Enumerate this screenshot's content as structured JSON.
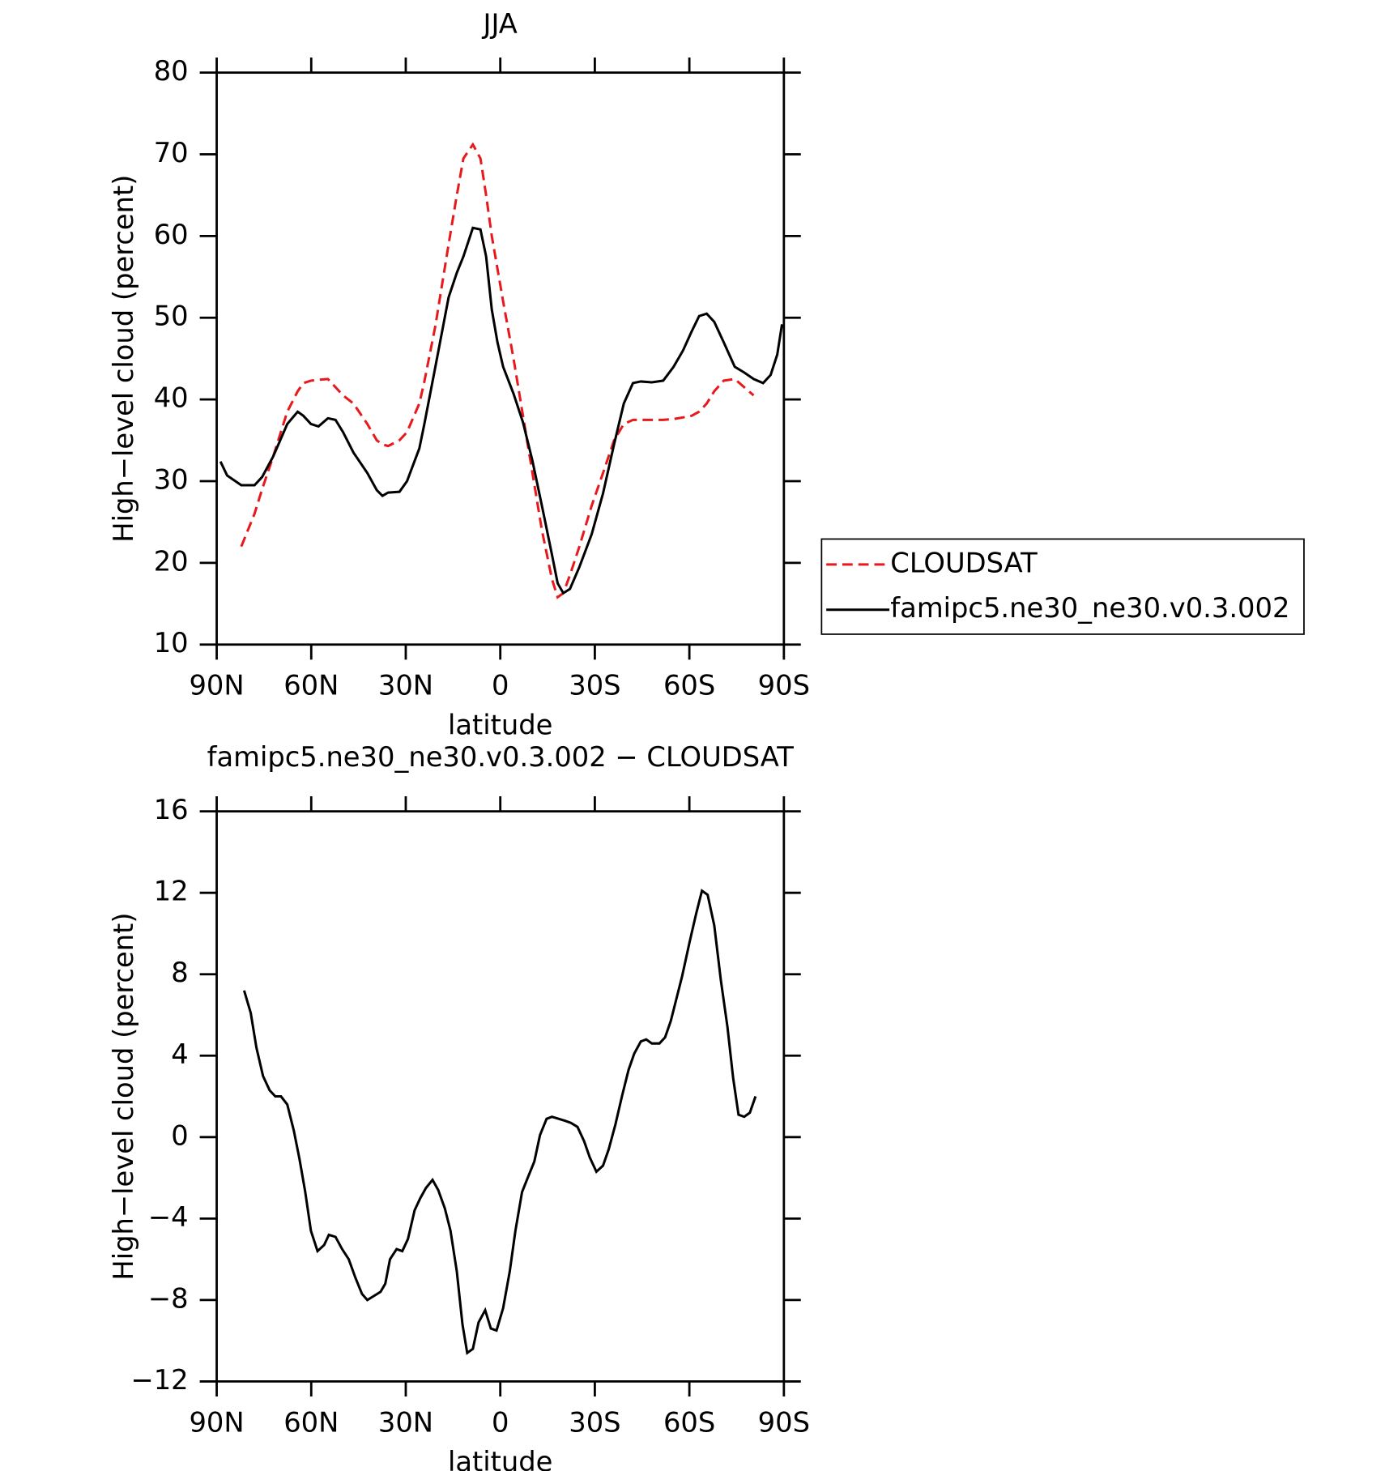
{
  "chart_data": [
    {
      "type": "line",
      "title": "JJA",
      "xlabel": "latitude",
      "ylabel": "High−level cloud (percent)",
      "xlim": [
        90,
        -90
      ],
      "xticks": [
        {
          "value": 90,
          "label": "90N"
        },
        {
          "value": 60,
          "label": "60N"
        },
        {
          "value": 30,
          "label": "30N"
        },
        0,
        {
          "value": -30,
          "label": "30S"
        },
        {
          "value": -60,
          "label": "60S"
        },
        {
          "value": -90,
          "label": "90S"
        }
      ],
      "ylim": [
        10,
        80
      ],
      "yticks": [
        10,
        20,
        30,
        40,
        50,
        60,
        70,
        80
      ],
      "legend": "right",
      "x": [
        88.8,
        86.7,
        82.2,
        78.0,
        75.6,
        72.1,
        67.6,
        64.3,
        62.5,
        60.1,
        57.7,
        54.7,
        52.3,
        49.9,
        46.6,
        42.2,
        39.2,
        37.4,
        35.6,
        32.0,
        29.6,
        25.7,
        24.2,
        20.6,
        16.4,
        13.8,
        11.7,
        8.7,
        6.3,
        4.5,
        2.7,
        0.9,
        -0.9,
        -4.2,
        -7.2,
        -10.2,
        -13.2,
        -16.4,
        -18.2,
        -20.0,
        -22.1,
        -25.1,
        -29.0,
        -32.6,
        -36.1,
        -39.2,
        -42.1,
        -44.6,
        -48.1,
        -51.7,
        -55.0,
        -58.0,
        -60.7,
        -63.1,
        -65.5,
        -67.9,
        -70.9,
        -74.4,
        -77.4,
        -80.4,
        -83.4,
        -85.8,
        -87.9,
        -89.4
      ],
      "series": [
        {
          "name": "CLOUDSAT",
          "color": "#e8191c",
          "line_style": "dashed",
          "values": [
            null,
            null,
            22,
            26,
            29,
            33,
            38.5,
            41,
            42,
            42.3,
            42.4,
            42.5,
            41.5,
            40.5,
            39.5,
            37,
            35,
            34.5,
            34.3,
            35,
            36,
            39.5,
            42,
            49,
            59,
            65,
            69.5,
            71.2,
            69.5,
            65,
            60,
            56,
            52,
            45,
            38,
            31,
            24,
            18,
            15.8,
            16.3,
            18.5,
            22,
            27,
            31,
            35,
            37,
            37.5,
            37.5,
            37.5,
            37.5,
            37.6,
            37.8,
            38,
            38.5,
            39.5,
            41,
            42.3,
            42.5,
            41.5,
            40.5,
            null,
            null,
            null,
            null
          ]
        },
        {
          "name": "famipc5.ne30_ne30.v0.3.002",
          "color": "#000000",
          "line_style": "solid",
          "values": [
            32.4,
            30.7,
            29.5,
            29.5,
            30.5,
            33,
            37,
            38.5,
            38,
            37,
            36.7,
            37.7,
            37.5,
            36,
            33.5,
            31,
            28.9,
            28.2,
            28.6,
            28.7,
            30,
            34,
            36.8,
            44,
            52.5,
            55.5,
            57.5,
            61,
            60.8,
            57.5,
            51,
            47,
            44,
            40.7,
            37.2,
            32.5,
            27,
            21,
            17.5,
            16.3,
            16.8,
            19.5,
            23.5,
            28.5,
            34.5,
            39.5,
            42,
            42.2,
            42.1,
            42.3,
            44,
            46,
            48.3,
            50.2,
            50.5,
            49.5,
            47,
            44,
            43.3,
            42.5,
            42,
            43,
            45.5,
            49.2
          ]
        }
      ]
    },
    {
      "type": "line",
      "title": "famipc5.ne30_ne30.v0.3.002 − CLOUDSAT",
      "xlabel": "latitude",
      "ylabel": "High−level cloud (percent)",
      "xlim": [
        90,
        -90
      ],
      "xticks": [
        {
          "value": 90,
          "label": "90N"
        },
        {
          "value": 60,
          "label": "60N"
        },
        {
          "value": 30,
          "label": "30N"
        },
        0,
        {
          "value": -30,
          "label": "30S"
        },
        {
          "value": -60,
          "label": "60S"
        },
        {
          "value": -90,
          "label": "90S"
        }
      ],
      "ylim": [
        -12,
        16
      ],
      "yticks": [
        {
          "value": -12,
          "label": "−12"
        },
        {
          "value": -8,
          "label": "−8"
        },
        {
          "value": -4,
          "label": "−4"
        },
        0,
        4,
        8,
        12,
        16
      ],
      "color": "#000000",
      "x": [
        81.3,
        79.2,
        77.4,
        75.3,
        73.2,
        71.4,
        69.6,
        67.6,
        65.5,
        63.7,
        61.9,
        60.1,
        58.0,
        55.9,
        54.4,
        52.3,
        50.2,
        48.1,
        46.0,
        43.9,
        42.2,
        40.1,
        38.0,
        36.5,
        35.0,
        32.9,
        31.1,
        29.3,
        27.2,
        25.4,
        23.6,
        21.5,
        19.7,
        17.6,
        15.8,
        13.8,
        12.0,
        10.5,
        8.7,
        6.9,
        4.8,
        3.0,
        1.2,
        -0.9,
        -3.0,
        -4.8,
        -6.9,
        -8.7,
        -10.8,
        -12.6,
        -14.7,
        -16.4,
        -18.5,
        -20.6,
        -22.4,
        -24.5,
        -26.6,
        -28.4,
        -30.5,
        -32.6,
        -34.4,
        -36.5,
        -38.6,
        -40.7,
        -42.5,
        -44.6,
        -46.3,
        -48.1,
        -50.5,
        -52.3,
        -54.1,
        -55.9,
        -57.7,
        -60.1,
        -62.2,
        -64.0,
        -65.8,
        -67.9,
        -70.0,
        -72.1,
        -73.9,
        -75.6,
        -77.4,
        -79.2,
        -81.0
      ],
      "values": [
        7.2,
        6.1,
        4.4,
        3.0,
        2.3,
        2.0,
        2.0,
        1.6,
        0.3,
        -1.1,
        -2.7,
        -4.6,
        -5.6,
        -5.3,
        -4.8,
        -4.9,
        -5.5,
        -6.0,
        -6.9,
        -7.7,
        -8.0,
        -7.8,
        -7.6,
        -7.2,
        -6.0,
        -5.5,
        -5.6,
        -5.0,
        -3.6,
        -3.0,
        -2.5,
        -2.1,
        -2.6,
        -3.5,
        -4.6,
        -6.6,
        -9.2,
        -10.6,
        -10.4,
        -9.1,
        -8.5,
        -9.4,
        -9.5,
        -8.4,
        -6.6,
        -4.6,
        -2.7,
        -2.0,
        -1.2,
        0.1,
        0.9,
        1.0,
        0.9,
        0.8,
        0.7,
        0.5,
        -0.2,
        -1.0,
        -1.7,
        -1.4,
        -0.6,
        0.6,
        2.0,
        3.3,
        4.1,
        4.7,
        4.8,
        4.6,
        4.6,
        4.9,
        5.7,
        6.8,
        7.9,
        9.6,
        11.0,
        12.1,
        11.9,
        10.4,
        7.7,
        5.4,
        2.9,
        1.1,
        1.0,
        1.2,
        2.0
      ]
    }
  ]
}
